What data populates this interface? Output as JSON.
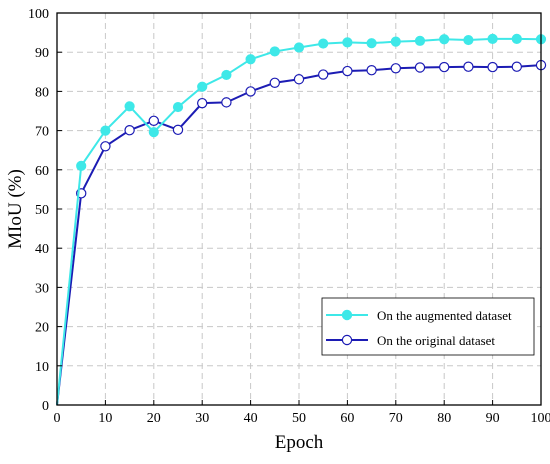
{
  "chart_data": {
    "type": "line",
    "xlabel": "Epoch",
    "ylabel": "MIoU (%)",
    "xlim": [
      0,
      100
    ],
    "ylim": [
      0,
      100
    ],
    "xticks": [
      0,
      10,
      20,
      30,
      40,
      50,
      60,
      70,
      80,
      90,
      100
    ],
    "yticks": [
      0,
      10,
      20,
      30,
      40,
      50,
      60,
      70,
      80,
      90,
      100
    ],
    "grid": true,
    "legend_position": "bottom-right",
    "series": [
      {
        "name": "On the augmented dataset",
        "color": "#3ee8e8",
        "marker": "filled-circle",
        "x": [
          0,
          5,
          10,
          15,
          20,
          25,
          30,
          35,
          40,
          45,
          50,
          55,
          60,
          65,
          70,
          75,
          80,
          85,
          90,
          95,
          100
        ],
        "y": [
          0,
          61.0,
          70.0,
          76.2,
          69.6,
          76.0,
          81.2,
          84.2,
          88.2,
          90.2,
          91.2,
          92.2,
          92.5,
          92.3,
          92.7,
          92.9,
          93.3,
          93.1,
          93.4,
          93.4,
          93.3
        ]
      },
      {
        "name": "On the original dataset",
        "color": "#1c1cb4",
        "marker": "open-circle",
        "x": [
          0,
          5,
          10,
          15,
          20,
          25,
          30,
          35,
          40,
          45,
          50,
          55,
          60,
          65,
          70,
          75,
          80,
          85,
          90,
          95,
          100
        ],
        "y": [
          0,
          54.0,
          66.0,
          70.1,
          72.5,
          70.2,
          77.0,
          77.2,
          80.0,
          82.2,
          83.1,
          84.3,
          85.2,
          85.4,
          85.9,
          86.1,
          86.2,
          86.3,
          86.2,
          86.3,
          86.7
        ]
      }
    ]
  }
}
